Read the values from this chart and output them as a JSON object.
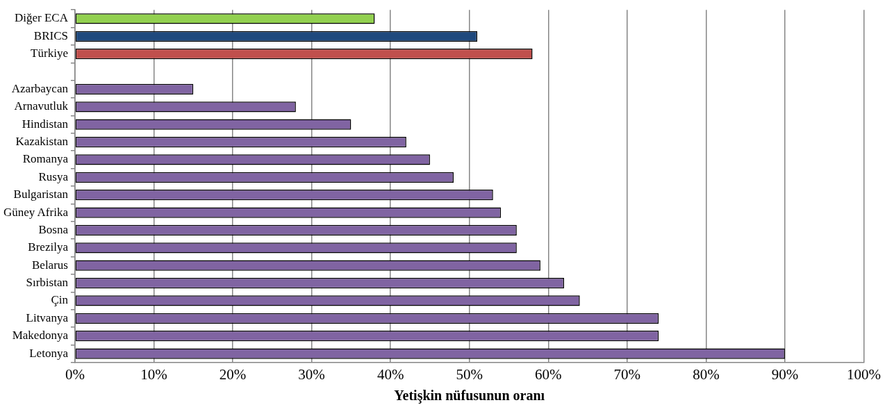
{
  "chart_data": {
    "type": "bar",
    "orientation": "horizontal",
    "xlabel": "Yetişkin nüfusunun oranı",
    "categories": [
      "Diğer ECA",
      "BRICS",
      "Türkiye",
      null,
      "Azarbaycan",
      "Arnavutluk",
      "Hindistan",
      "Kazakistan",
      "Romanya",
      "Rusya",
      "Bulgaristan",
      "Güney Afrika",
      "Bosna",
      "Brezilya",
      "Belarus",
      "Sırbistan",
      "Çin",
      "Litvanya",
      "Makedonya",
      "Letonya"
    ],
    "values": [
      38,
      51,
      58,
      null,
      15,
      28,
      35,
      42,
      45,
      48,
      53,
      54,
      56,
      56,
      59,
      62,
      64,
      74,
      74,
      90
    ],
    "colors": [
      "#92d050",
      "#1f497d",
      "#c0504d",
      "#8064a2",
      "#8064a2",
      "#8064a2",
      "#8064a2",
      "#8064a2",
      "#8064a2",
      "#8064a2",
      "#8064a2",
      "#8064a2",
      "#8064a2",
      "#8064a2",
      "#8064a2",
      "#8064a2",
      "#8064a2",
      "#8064a2",
      "#8064a2",
      "#8064a2"
    ],
    "xlim": [
      0,
      100
    ],
    "xticks": [
      {
        "value": 0,
        "label": "0%"
      },
      {
        "value": 10,
        "label": "10%"
      },
      {
        "value": 20,
        "label": "20%"
      },
      {
        "value": 30,
        "label": "30%"
      },
      {
        "value": 40,
        "label": "40%"
      },
      {
        "value": 50,
        "label": "50%"
      },
      {
        "value": 60,
        "label": "60%"
      },
      {
        "value": 70,
        "label": "70%"
      },
      {
        "value": 80,
        "label": "80%"
      },
      {
        "value": 90,
        "label": "90%"
      },
      {
        "value": 100,
        "label": "100%"
      }
    ],
    "grid": "x",
    "legend": false
  }
}
